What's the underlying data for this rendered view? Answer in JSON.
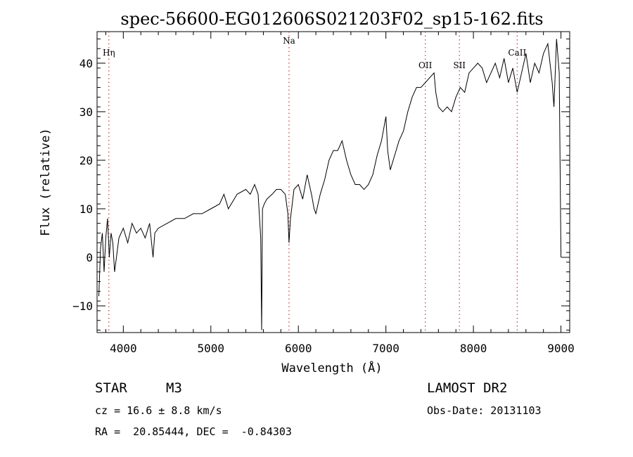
{
  "chart_data": {
    "type": "line",
    "title": "spec-56600-EG012606S021203F02_sp15-162.fits",
    "xlabel": "Wavelength (Å)",
    "ylabel": "Flux (relative)",
    "xlim": [
      3700,
      9100
    ],
    "ylim": [
      -15.5,
      46.5
    ],
    "xticks": [
      4000,
      5000,
      6000,
      7000,
      8000,
      9000
    ],
    "yticks": [
      -10,
      0,
      10,
      20,
      30,
      40
    ],
    "grid": false,
    "line_color": "#000000",
    "marker_color": "#cc3333",
    "lines": [
      {
        "label": "Hη",
        "x": 3835
      },
      {
        "label": "Na",
        "x": 5893
      },
      {
        "label": "OII",
        "x": 7450
      },
      {
        "label": "SII",
        "x": 7840
      },
      {
        "label": "CaII",
        "x": 8500
      }
    ],
    "series": [
      {
        "x": [
          3720,
          3740,
          3760,
          3780,
          3800,
          3820,
          3840,
          3860,
          3880,
          3900,
          3950,
          4000,
          4050,
          4100,
          4150,
          4200,
          4250,
          4300,
          4340,
          4360,
          4400,
          4500,
          4600,
          4700,
          4800,
          4900,
          5000,
          5100,
          5150,
          5200,
          5300,
          5400,
          5450,
          5500,
          5540,
          5570,
          5580,
          5590,
          5610,
          5640,
          5700,
          5750,
          5800,
          5850,
          5880,
          5893,
          5910,
          5950,
          6000,
          6050,
          6100,
          6150,
          6180,
          6200,
          6250,
          6300,
          6350,
          6400,
          6450,
          6500,
          6550,
          6600,
          6650,
          6700,
          6750,
          6800,
          6850,
          6900,
          6950,
          7000,
          7020,
          7050,
          7100,
          7150,
          7200,
          7250,
          7300,
          7350,
          7400,
          7450,
          7500,
          7550,
          7570,
          7600,
          7650,
          7700,
          7750,
          7800,
          7850,
          7900,
          7950,
          8000,
          8050,
          8100,
          8150,
          8200,
          8250,
          8300,
          8350,
          8400,
          8450,
          8500,
          8550,
          8600,
          8650,
          8700,
          8750,
          8800,
          8850,
          8900,
          8920,
          8950,
          8980,
          9000
        ],
        "y": [
          -8,
          2,
          5,
          -3,
          4,
          8,
          0,
          5,
          3,
          -3,
          4,
          6,
          3,
          7,
          5,
          6,
          4,
          7,
          0,
          5,
          6,
          7,
          8,
          8,
          9,
          9,
          10,
          11,
          13,
          10,
          13,
          14,
          13,
          15,
          13,
          4,
          -15,
          10,
          11,
          12,
          13,
          14,
          14,
          13,
          9,
          3,
          8,
          14,
          15,
          12,
          17,
          13,
          10,
          9,
          13,
          16,
          20,
          22,
          22,
          24,
          20,
          17,
          15,
          15,
          14,
          15,
          17,
          21,
          24,
          29,
          22,
          18,
          21,
          24,
          26,
          30,
          33,
          35,
          35,
          36,
          37,
          38,
          34,
          31,
          30,
          31,
          30,
          33,
          35,
          34,
          38,
          39,
          40,
          39,
          36,
          38,
          40,
          37,
          41,
          36,
          39,
          34,
          38,
          42,
          36,
          40,
          38,
          42,
          44,
          36,
          31,
          45,
          38,
          0
        ]
      }
    ]
  },
  "info": {
    "object_class": "STAR",
    "subclass": "M3",
    "survey": "LAMOST DR2",
    "cz": "cz = 16.6 ± 8.8 km/s",
    "obs_date": "Obs-Date: 20131103",
    "coords": "RA =  20.85444, DEC =  -0.84303"
  }
}
